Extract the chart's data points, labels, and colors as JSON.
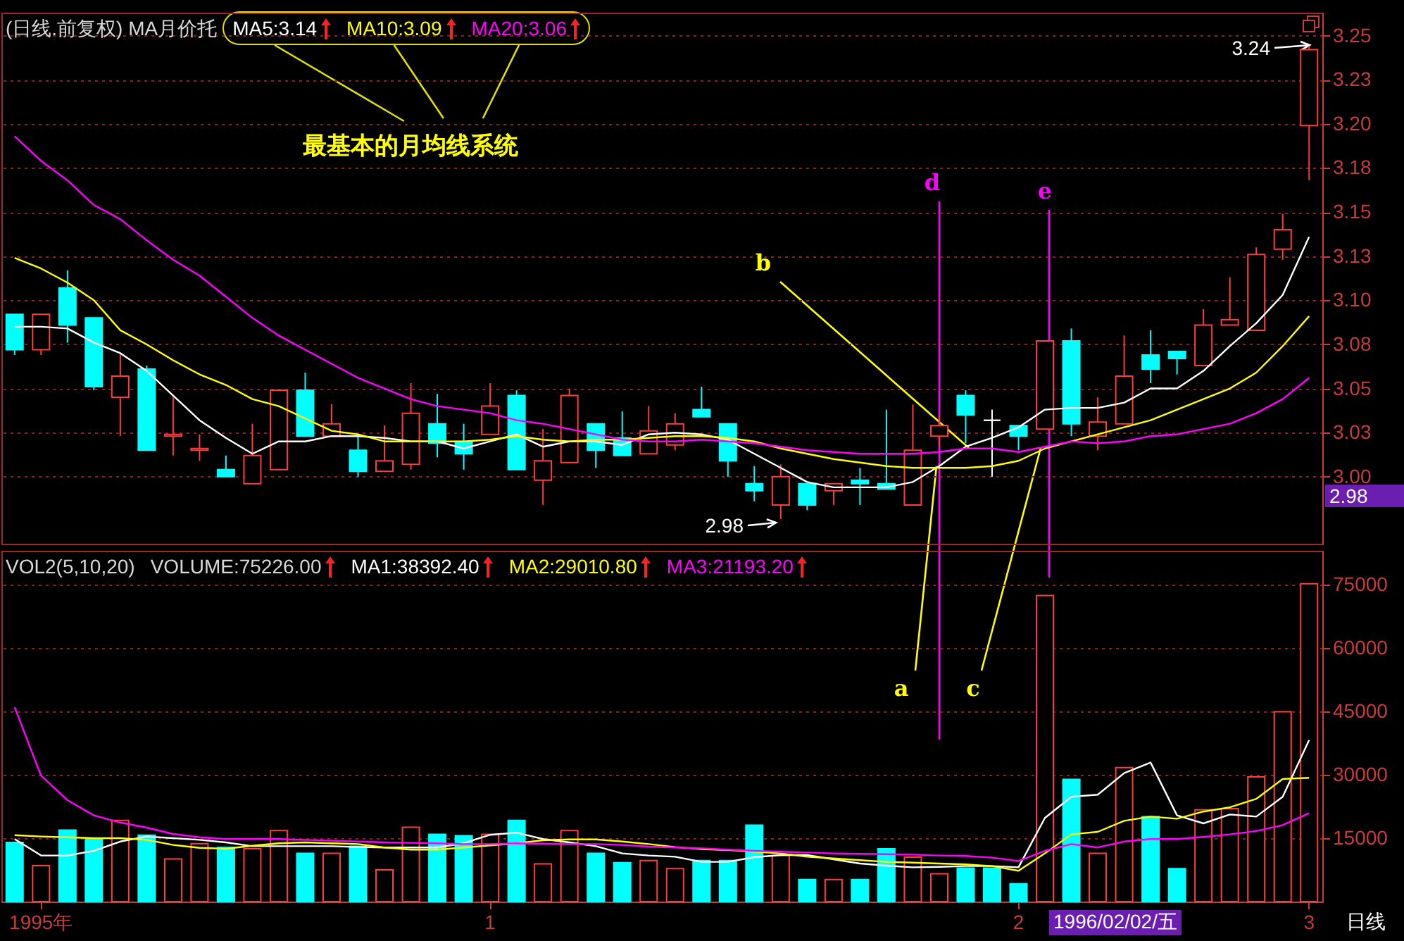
{
  "chart_data": [
    {
      "type": "candlestick",
      "title": "(日线.前复权) MA月价托",
      "legend": "top left",
      "grid": "y",
      "tick_labels": "y",
      "categories": [
        null,
        null,
        null,
        null,
        null,
        null,
        null,
        null,
        null,
        null,
        null,
        null,
        null,
        null,
        null,
        null,
        null,
        null,
        null,
        null,
        null,
        null,
        null,
        null,
        null,
        null,
        null,
        null,
        null,
        null,
        null,
        null,
        null,
        null,
        null,
        null,
        null,
        null,
        null,
        null,
        null,
        null,
        null,
        null,
        null,
        null,
        null,
        null,
        null,
        null
      ],
      "ylim": [
        2.962,
        3.263
      ],
      "yticks": [
        {
          "value": 3.0,
          "label": "3.00"
        },
        {
          "value": 3.025,
          "label": "3.03"
        },
        {
          "value": 3.05,
          "label": "3.05"
        },
        {
          "value": 3.075,
          "label": "3.08"
        },
        {
          "value": 3.1,
          "label": "3.10"
        },
        {
          "value": 3.125,
          "label": "3.13"
        },
        {
          "value": 3.15,
          "label": "3.15"
        },
        {
          "value": 3.175,
          "label": "3.18"
        },
        {
          "value": 3.2,
          "label": "3.20"
        },
        {
          "value": 3.225,
          "label": "3.23"
        },
        {
          "value": 3.25,
          "label": "3.25"
        }
      ],
      "ohlc": [
        [
          3.092,
          3.092,
          3.069,
          3.072
        ],
        [
          3.072,
          3.092,
          3.069,
          3.092
        ],
        [
          3.107,
          3.117,
          3.076,
          3.086
        ],
        [
          3.09,
          3.09,
          3.049,
          3.051
        ],
        [
          3.045,
          3.07,
          3.023,
          3.057
        ],
        [
          3.061,
          3.063,
          3.015,
          3.015
        ],
        [
          3.023,
          3.045,
          3.012,
          3.024
        ],
        [
          3.015,
          3.024,
          3.009,
          3.016
        ],
        [
          3.004,
          3.012,
          3.0,
          3.0
        ],
        [
          2.996,
          3.03,
          2.996,
          3.012
        ],
        [
          3.004,
          3.049,
          3.004,
          3.049
        ],
        [
          3.049,
          3.059,
          3.023,
          3.023
        ],
        [
          3.023,
          3.041,
          3.023,
          3.03
        ],
        [
          3.015,
          3.023,
          3.0,
          3.003
        ],
        [
          3.003,
          3.029,
          3.003,
          3.009
        ],
        [
          3.007,
          3.053,
          3.004,
          3.036
        ],
        [
          3.03,
          3.047,
          3.011,
          3.019
        ],
        [
          3.02,
          3.03,
          3.004,
          3.013
        ],
        [
          3.024,
          3.053,
          3.024,
          3.04
        ],
        [
          3.046,
          3.049,
          3.004,
          3.004
        ],
        [
          2.998,
          3.027,
          2.984,
          3.009
        ],
        [
          3.008,
          3.05,
          3.008,
          3.046
        ],
        [
          3.03,
          3.03,
          3.005,
          3.015
        ],
        [
          3.022,
          3.037,
          3.012,
          3.012
        ],
        [
          3.013,
          3.04,
          3.013,
          3.026
        ],
        [
          3.018,
          3.036,
          3.015,
          3.03
        ],
        [
          3.038,
          3.051,
          3.034,
          3.034
        ],
        [
          3.03,
          3.03,
          3.0,
          3.009
        ],
        [
          2.996,
          3.006,
          2.986,
          2.992
        ],
        [
          2.984,
          3.007,
          2.976,
          3.0
        ],
        [
          2.996,
          2.996,
          2.981,
          2.984
        ],
        [
          2.992,
          2.996,
          2.984,
          2.996
        ],
        [
          2.998,
          3.005,
          2.984,
          2.996
        ],
        [
          2.996,
          3.038,
          2.993,
          2.993
        ],
        [
          2.984,
          3.041,
          2.984,
          3.015
        ],
        [
          3.023,
          3.035,
          3.017,
          3.029
        ],
        [
          3.046,
          3.049,
          3.019,
          3.035
        ],
        [
          3.032,
          3.038,
          3.0,
          3.032
        ],
        [
          3.029,
          3.029,
          3.015,
          3.023
        ],
        [
          3.027,
          3.077,
          3.027,
          3.077
        ],
        [
          3.077,
          3.084,
          3.023,
          3.03
        ],
        [
          3.023,
          3.045,
          3.015,
          3.031
        ],
        [
          3.03,
          3.08,
          3.03,
          3.057
        ],
        [
          3.069,
          3.083,
          3.053,
          3.061
        ],
        [
          3.071,
          3.071,
          3.058,
          3.067
        ],
        [
          3.063,
          3.095,
          3.063,
          3.086
        ],
        [
          3.086,
          3.113,
          3.086,
          3.089
        ],
        [
          3.083,
          3.13,
          3.083,
          3.126
        ],
        [
          3.129,
          3.149,
          3.123,
          3.14
        ],
        [
          3.199,
          3.244,
          3.168,
          3.242
        ]
      ],
      "colors": [
        "#00ffff",
        "#ff3c3c",
        "#00ffff",
        "#00ffff",
        "#ff3c3c",
        "#00ffff",
        "#ff3c3c",
        "#ff3c3c",
        "#00ffff",
        "#ff3c3c",
        "#ff3c3c",
        "#00ffff",
        "#ff3c3c",
        "#00ffff",
        "#ff3c3c",
        "#ff3c3c",
        "#00ffff",
        "#00ffff",
        "#ff3c3c",
        "#00ffff",
        "#ff3c3c",
        "#ff3c3c",
        "#00ffff",
        "#00ffff",
        "#ff3c3c",
        "#ff3c3c",
        "#00ffff",
        "#00ffff",
        "#00ffff",
        "#ff3c3c",
        "#00ffff",
        "#ff3c3c",
        "#00ffff",
        "#00ffff",
        "#ff3c3c",
        "#ff3c3c",
        "#00ffff",
        "#ffffff",
        "#00ffff",
        "#ff3c3c",
        "#00ffff",
        "#ff3c3c",
        "#ff3c3c",
        "#00ffff",
        "#00ffff",
        "#ff3c3c",
        "#ff3c3c",
        "#ff3c3c",
        "#ff3c3c",
        "#ff3c3c"
      ],
      "series": [
        {
          "name": "MA5:3.14",
          "type": "line",
          "color": "#ffffff",
          "values": [
            3.085,
            3.085,
            3.084,
            3.076,
            3.07,
            3.06,
            3.046,
            3.032,
            3.022,
            3.013,
            3.02,
            3.02,
            3.023,
            3.023,
            3.022,
            3.02,
            3.02,
            3.016,
            3.02,
            3.024,
            3.017,
            3.02,
            3.02,
            3.018,
            3.024,
            3.025,
            3.024,
            3.021,
            3.013,
            3.005,
            2.997,
            2.994,
            2.994,
            2.994,
            2.997,
            3.006,
            3.017,
            3.022,
            3.028,
            3.038,
            3.039,
            3.039,
            3.042,
            3.05,
            3.05,
            3.06,
            3.074,
            3.087,
            3.103,
            3.136
          ]
        },
        {
          "name": "MA10:3.09",
          "type": "line",
          "color": "#ffff00",
          "values": [
            3.124,
            3.118,
            3.11,
            3.1,
            3.083,
            3.075,
            3.066,
            3.058,
            3.052,
            3.044,
            3.04,
            3.033,
            3.026,
            3.024,
            3.02,
            3.02,
            3.02,
            3.02,
            3.021,
            3.023,
            3.021,
            3.02,
            3.021,
            3.021,
            3.022,
            3.023,
            3.023,
            3.022,
            3.02,
            3.016,
            3.013,
            3.01,
            3.008,
            3.006,
            3.005,
            3.005,
            3.005,
            3.006,
            3.009,
            3.016,
            3.02,
            3.024,
            3.028,
            3.032,
            3.038,
            3.044,
            3.05,
            3.059,
            3.074,
            3.091
          ]
        },
        {
          "name": "MA20:3.06",
          "type": "line",
          "color": "#ff00ff",
          "values": [
            3.193,
            3.179,
            3.168,
            3.154,
            3.146,
            3.134,
            3.123,
            3.114,
            3.102,
            3.09,
            3.08,
            3.072,
            3.064,
            3.056,
            3.05,
            3.044,
            3.04,
            3.038,
            3.036,
            3.032,
            3.03,
            3.027,
            3.024,
            3.021,
            3.02,
            3.02,
            3.021,
            3.02,
            3.019,
            3.017,
            3.015,
            3.014,
            3.013,
            3.013,
            3.013,
            3.014,
            3.016,
            3.016,
            3.014,
            3.017,
            3.02,
            3.019,
            3.02,
            3.023,
            3.024,
            3.027,
            3.03,
            3.036,
            3.044,
            3.056
          ]
        }
      ],
      "annotations": [
        "最基本的月均线系统",
        "2.98",
        "3.24",
        "2.98",
        "a",
        "b",
        "c",
        "d",
        "e"
      ]
    },
    {
      "type": "bar",
      "title": "VOL2(5,10,20)",
      "subtitle": "VOLUME:75226.00",
      "legend": "top left",
      "grid": "y",
      "categories": [
        null,
        "1995年",
        null,
        null,
        null,
        null,
        null,
        null,
        null,
        null,
        null,
        null,
        null,
        null,
        null,
        null,
        null,
        null,
        "1",
        null,
        null,
        null,
        null,
        null,
        null,
        null,
        null,
        null,
        null,
        null,
        null,
        null,
        null,
        null,
        null,
        null,
        null,
        null,
        "2",
        null,
        null,
        null,
        null,
        null,
        null,
        null,
        null,
        null,
        null,
        "3"
      ],
      "ylim": [
        0,
        83000
      ],
      "yticks": [
        15000,
        30000,
        45000,
        60000,
        75000
      ],
      "series": [
        {
          "type": "bar",
          "colors": [
            "#00ffff",
            "#ff3c3c",
            "#00ffff",
            "#00ffff",
            "#ff3c3c",
            "#00ffff",
            "#ff3c3c",
            "#ff3c3c",
            "#00ffff",
            "#ff3c3c",
            "#ff3c3c",
            "#00ffff",
            "#ff3c3c",
            "#00ffff",
            "#ff3c3c",
            "#ff3c3c",
            "#00ffff",
            "#00ffff",
            "#ff3c3c",
            "#00ffff",
            "#ff3c3c",
            "#ff3c3c",
            "#00ffff",
            "#00ffff",
            "#ff3c3c",
            "#ff3c3c",
            "#00ffff",
            "#00ffff",
            "#00ffff",
            "#ff3c3c",
            "#00ffff",
            "#ff3c3c",
            "#00ffff",
            "#00ffff",
            "#ff3c3c",
            "#ff3c3c",
            "#00ffff",
            "#00ffff",
            "#00ffff",
            "#ff3c3c",
            "#00ffff",
            "#ff3c3c",
            "#ff3c3c",
            "#00ffff",
            "#00ffff",
            "#ff3c3c",
            "#ff3c3c",
            "#ff3c3c",
            "#ff3c3c",
            "#ff3c3c"
          ],
          "values": [
            14000,
            8500,
            16900,
            15000,
            19200,
            15700,
            10100,
            13700,
            12800,
            12500,
            16800,
            11400,
            11400,
            13100,
            7500,
            17600,
            15900,
            15600,
            15900,
            19200,
            8900,
            16800,
            11400,
            9200,
            9700,
            7800,
            9700,
            9700,
            18100,
            10900,
            5200,
            5200,
            5200,
            12500,
            10500,
            6600,
            7900,
            7900,
            4200,
            72400,
            28900,
            11400,
            31700,
            20100,
            7800,
            21700,
            22000,
            29500,
            44900,
            75200
          ]
        },
        {
          "name": "MA1:38392.40",
          "type": "line",
          "color": "#ffffff",
          "values": [
            14800,
            10900,
            10900,
            12000,
            14200,
            15400,
            15000,
            14600,
            14000,
            13100,
            13100,
            13100,
            13100,
            12900,
            12800,
            12800,
            12800,
            13800,
            15800,
            16300,
            14800,
            14000,
            13100,
            11400,
            10900,
            10600,
            9400,
            9400,
            10500,
            11000,
            11000,
            10000,
            9000,
            8500,
            8100,
            8200,
            8400,
            8400,
            8100,
            19800,
            24800,
            25300,
            30400,
            32900,
            20400,
            18500,
            20600,
            20100,
            24800,
            38200
          ]
        },
        {
          "name": "MA2:29010.80",
          "type": "line",
          "color": "#ffff00",
          "values": [
            15700,
            15400,
            15200,
            15000,
            15000,
            14600,
            13400,
            12700,
            12500,
            13200,
            13800,
            14000,
            13800,
            13600,
            12800,
            12300,
            12300,
            12800,
            13300,
            13800,
            14500,
            14700,
            14700,
            14200,
            13600,
            12900,
            12400,
            12200,
            11800,
            11400,
            10600,
            10200,
            9800,
            9400,
            9200,
            9000,
            8800,
            8400,
            7300,
            11400,
            15900,
            16500,
            19100,
            20100,
            19600,
            21300,
            22300,
            24300,
            29000,
            29300
          ]
        },
        {
          "name": "MA3:21193.20",
          "type": "line",
          "color": "#ff00ff",
          "values": [
            46000,
            29800,
            24000,
            20400,
            18700,
            17500,
            16000,
            15200,
            14800,
            14800,
            14800,
            14600,
            14400,
            14200,
            14000,
            13900,
            13800,
            13600,
            13600,
            13800,
            13700,
            13600,
            13600,
            13400,
            13000,
            12800,
            12600,
            12300,
            12000,
            11800,
            11600,
            11400,
            11300,
            11200,
            11100,
            10900,
            10800,
            10400,
            9600,
            12000,
            13600,
            12800,
            14200,
            14800,
            14800,
            15300,
            15900,
            16700,
            18100,
            20900
          ]
        }
      ],
      "annotations": [
        "1996/02/02/五",
        "日线"
      ]
    }
  ]
}
